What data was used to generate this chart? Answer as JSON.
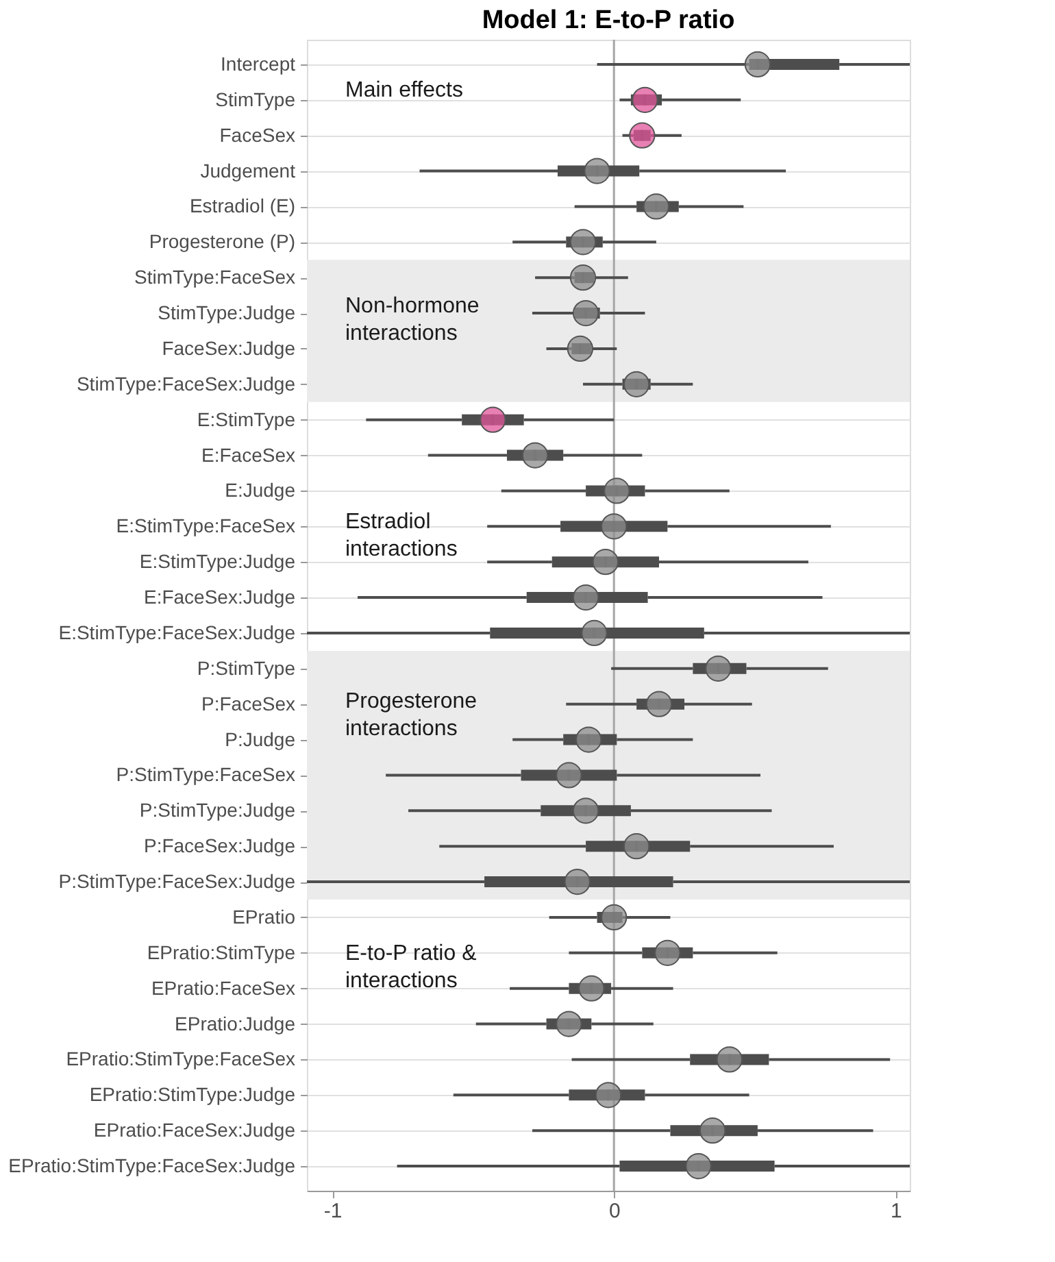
{
  "chart_data": {
    "type": "box",
    "orientation": "horizontal",
    "title": "Model 1: E-to-P ratio",
    "categories": [
      "Intercept",
      "StimType",
      "FaceSex",
      "Judgement",
      "Estradiol (E)",
      "Progesterone (P)",
      "StimType:FaceSex",
      "StimType:Judge",
      "FaceSex:Judge",
      "StimType:FaceSex:Judge",
      "E:StimType",
      "E:FaceSex",
      "E:Judge",
      "E:StimType:FaceSex",
      "E:StimType:Judge",
      "E:FaceSex:Judge",
      "E:StimType:FaceSex:Judge",
      "P:StimType",
      "P:FaceSex",
      "P:Judge",
      "P:StimType:FaceSex",
      "P:StimType:Judge",
      "P:FaceSex:Judge",
      "P:StimType:FaceSex:Judge",
      "EPratio",
      "EPratio:StimType",
      "EPratio:FaceSex",
      "EPratio:Judge",
      "EPratio:StimType:FaceSex",
      "EPratio:StimType:Judge",
      "EPratio:FaceSex:Judge",
      "EPratio:StimType:FaceSex:Judge"
    ],
    "series": [
      {
        "type": "box",
        "color": "#4d4d4d",
        "boxes": [
          {
            "low": -0.06,
            "q1": 0.48,
            "median": 0.51,
            "q3": 0.8,
            "high": 1.05
          },
          {
            "low": 0.02,
            "q1": 0.06,
            "median": 0.11,
            "q3": 0.17,
            "high": 0.45
          },
          {
            "low": 0.03,
            "q1": 0.07,
            "median": 0.1,
            "q3": 0.13,
            "high": 0.24
          },
          {
            "low": -0.69,
            "q1": -0.2,
            "median": -0.06,
            "q3": 0.09,
            "high": 0.61
          },
          {
            "low": -0.14,
            "q1": 0.08,
            "median": 0.15,
            "q3": 0.23,
            "high": 0.46
          },
          {
            "low": -0.36,
            "q1": -0.17,
            "median": -0.11,
            "q3": -0.04,
            "high": 0.15
          },
          {
            "low": -0.28,
            "q1": -0.14,
            "median": -0.11,
            "q3": -0.07,
            "high": 0.05
          },
          {
            "low": -0.29,
            "q1": -0.14,
            "median": -0.1,
            "q3": -0.05,
            "high": 0.11
          },
          {
            "low": -0.24,
            "q1": -0.15,
            "median": -0.12,
            "q3": -0.08,
            "high": 0.01
          },
          {
            "low": -0.11,
            "q1": 0.03,
            "median": 0.08,
            "q3": 0.13,
            "high": 0.28
          },
          {
            "low": -0.88,
            "q1": -0.54,
            "median": -0.43,
            "q3": -0.32,
            "high": 0
          },
          {
            "low": -0.66,
            "q1": -0.38,
            "median": -0.28,
            "q3": -0.18,
            "high": 0.1
          },
          {
            "low": -0.4,
            "q1": -0.1,
            "median": 0.01,
            "q3": 0.11,
            "high": 0.41
          },
          {
            "low": -0.45,
            "q1": -0.19,
            "median": 0,
            "q3": 0.19,
            "high": 0.77
          },
          {
            "low": -0.45,
            "q1": -0.22,
            "median": -0.03,
            "q3": 0.16,
            "high": 0.69
          },
          {
            "low": -0.91,
            "q1": -0.31,
            "median": -0.1,
            "q3": 0.12,
            "high": 0.74
          },
          {
            "low": -1.09,
            "q1": -0.44,
            "median": -0.07,
            "q3": 0.32,
            "high": 1.05
          },
          {
            "low": -0.01,
            "q1": 0.28,
            "median": 0.37,
            "q3": 0.47,
            "high": 0.76
          },
          {
            "low": -0.17,
            "q1": 0.08,
            "median": 0.16,
            "q3": 0.25,
            "high": 0.49
          },
          {
            "low": -0.36,
            "q1": -0.18,
            "median": -0.09,
            "q3": 0.01,
            "high": 0.28
          },
          {
            "low": -0.81,
            "q1": -0.33,
            "median": -0.16,
            "q3": 0.01,
            "high": 0.52
          },
          {
            "low": -0.73,
            "q1": -0.26,
            "median": -0.1,
            "q3": 0.06,
            "high": 0.56
          },
          {
            "low": -0.62,
            "q1": -0.1,
            "median": 0.08,
            "q3": 0.27,
            "high": 0.78
          },
          {
            "low": -1.09,
            "q1": -0.46,
            "median": -0.13,
            "q3": 0.21,
            "high": 1.05
          },
          {
            "low": -0.23,
            "q1": -0.06,
            "median": 0,
            "q3": 0.03,
            "high": 0.2
          },
          {
            "low": -0.16,
            "q1": 0.1,
            "median": 0.19,
            "q3": 0.28,
            "high": 0.58
          },
          {
            "low": -0.37,
            "q1": -0.16,
            "median": -0.08,
            "q3": -0.01,
            "high": 0.21
          },
          {
            "low": -0.49,
            "q1": -0.24,
            "median": -0.16,
            "q3": -0.08,
            "high": 0.14
          },
          {
            "low": -0.15,
            "q1": 0.27,
            "median": 0.41,
            "q3": 0.55,
            "high": 0.98
          },
          {
            "low": -0.57,
            "q1": -0.16,
            "median": -0.02,
            "q3": 0.11,
            "high": 0.48
          },
          {
            "low": -0.29,
            "q1": 0.2,
            "median": 0.35,
            "q3": 0.51,
            "high": 0.92
          },
          {
            "low": -0.77,
            "q1": 0.02,
            "median": 0.3,
            "q3": 0.57,
            "high": 1.05
          }
        ]
      },
      {
        "type": "scatter",
        "values": [
          0.51,
          0.11,
          0.1,
          -0.06,
          0.15,
          -0.11,
          -0.11,
          -0.1,
          -0.12,
          0.08,
          -0.43,
          -0.28,
          0.01,
          0,
          -0.03,
          -0.1,
          -0.07,
          0.37,
          0.16,
          -0.09,
          -0.16,
          -0.1,
          0.08,
          -0.13,
          0,
          0.19,
          -0.08,
          -0.16,
          0.41,
          -0.02,
          0.35,
          0.3
        ],
        "colors": [
          "#8c8c8c",
          "#e0559b",
          "#e0559b",
          "#8c8c8c",
          "#8c8c8c",
          "#8c8c8c",
          "#8c8c8c",
          "#8c8c8c",
          "#8c8c8c",
          "#8c8c8c",
          "#e0559b",
          "#8c8c8c",
          "#8c8c8c",
          "#8c8c8c",
          "#8c8c8c",
          "#8c8c8c",
          "#8c8c8c",
          "#8c8c8c",
          "#8c8c8c",
          "#8c8c8c",
          "#8c8c8c",
          "#8c8c8c",
          "#8c8c8c",
          "#8c8c8c",
          "#8c8c8c",
          "#8c8c8c",
          "#8c8c8c",
          "#8c8c8c",
          "#8c8c8c",
          "#8c8c8c",
          "#8c8c8c",
          "#8c8c8c"
        ],
        "marker": "circle"
      }
    ],
    "xlim": [
      -1.09,
      1.05
    ],
    "xticks": [
      -1,
      0,
      1
    ],
    "grid": "y",
    "ref_lines": [
      {
        "axis": "x",
        "value": 0,
        "color": "#a6a6a6"
      }
    ],
    "bands": [
      {
        "axis": "y",
        "from": "StimType:FaceSex",
        "to": "StimType:FaceSex:Judge",
        "color": "#ebebeb"
      },
      {
        "axis": "y",
        "from": "P:StimType",
        "to": "P:StimType:FaceSex:Judge",
        "color": "#ebebeb"
      }
    ],
    "annotations": [
      "Main effects",
      "Non-hormone\ninteractions",
      "Estradiol\ninteractions",
      "Progesterone\ninteractions",
      "E-to-P ratio &\ninteractions"
    ]
  }
}
